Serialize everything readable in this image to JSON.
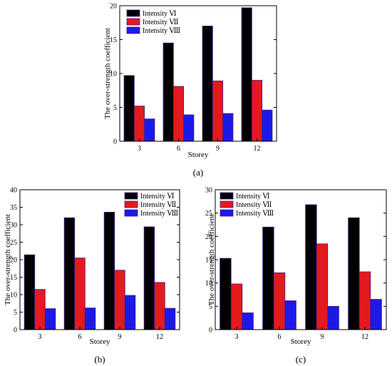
{
  "chart_data": [
    {
      "id": "a",
      "type": "bar",
      "caption": "(a)",
      "categories": [
        "3",
        "6",
        "9",
        "12"
      ],
      "series": [
        {
          "name": "Intensity Ⅵ",
          "color": "#000000",
          "values": [
            9.7,
            14.5,
            17.0,
            19.7
          ]
        },
        {
          "name": "Intensity Ⅶ",
          "color": "#e41a1c",
          "values": [
            5.2,
            8.1,
            8.9,
            9.0
          ]
        },
        {
          "name": "Intensity Ⅷ",
          "color": "#1a1ae8",
          "values": [
            3.3,
            3.9,
            4.1,
            4.6
          ]
        }
      ],
      "xlabel": "Storey",
      "ylabel": "The over-strength coefficient",
      "ylim": [
        0,
        20
      ],
      "yticks": [
        "0",
        "5",
        "10",
        "15",
        "20"
      ],
      "grid": false,
      "legend_position": "top-left"
    },
    {
      "id": "b",
      "type": "bar",
      "caption": "(b)",
      "categories": [
        "3",
        "6",
        "9",
        "12"
      ],
      "series": [
        {
          "name": "Intensity Ⅵ",
          "color": "#000000",
          "values": [
            21.4,
            32.0,
            33.6,
            29.4
          ]
        },
        {
          "name": "Intensity Ⅶ",
          "color": "#e41a1c",
          "values": [
            11.5,
            20.5,
            17.0,
            13.5
          ]
        },
        {
          "name": "Intensity Ⅷ",
          "color": "#1a1ae8",
          "values": [
            6.0,
            6.2,
            9.8,
            6.1
          ]
        }
      ],
      "xlabel": "Storey",
      "ylabel": "The over-strength coefficient",
      "ylim": [
        0,
        40
      ],
      "yticks": [
        "0",
        "5",
        "10",
        "15",
        "20",
        "25",
        "30",
        "35",
        "40"
      ],
      "grid": false,
      "legend_position": "top-right"
    },
    {
      "id": "c",
      "type": "bar",
      "caption": "(c)",
      "categories": [
        "3",
        "6",
        "9",
        "12"
      ],
      "series": [
        {
          "name": "Intensity Ⅵ",
          "color": "#000000",
          "values": [
            15.3,
            22.0,
            26.8,
            24.0
          ]
        },
        {
          "name": "Intensity Ⅶ",
          "color": "#e41a1c",
          "values": [
            9.8,
            12.2,
            18.4,
            12.4
          ]
        },
        {
          "name": "Intensity Ⅷ",
          "color": "#1a1ae8",
          "values": [
            3.6,
            6.2,
            5.0,
            6.5
          ]
        }
      ],
      "xlabel": "Storey",
      "ylabel": "The over-strength coefficient",
      "ylim": [
        0,
        30
      ],
      "yticks": [
        "0",
        "5",
        "10",
        "15",
        "20",
        "25",
        "30"
      ],
      "grid": false,
      "legend_position": "top-left"
    }
  ]
}
